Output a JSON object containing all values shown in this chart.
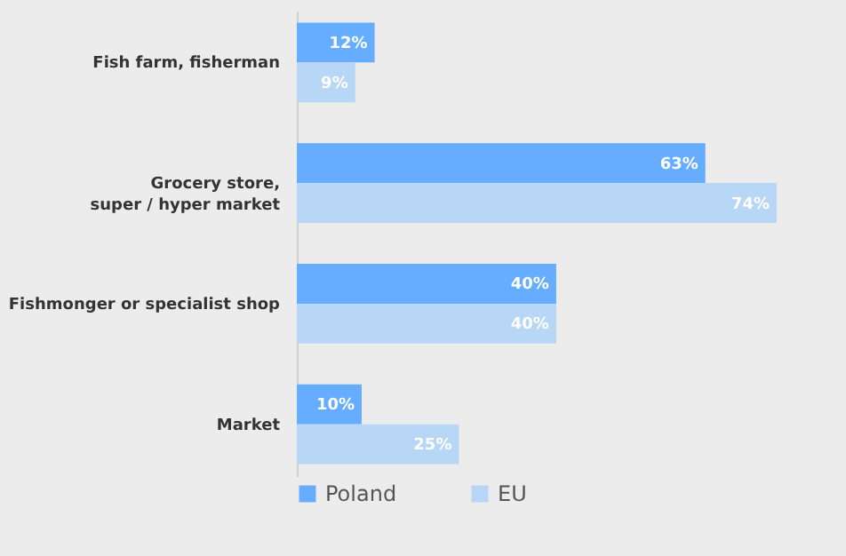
{
  "chart_data": {
    "type": "bar",
    "orientation": "horizontal",
    "categories": [
      "Fish farm, fisherman",
      "Grocery store,\nsuper / hyper market",
      "Fishmonger or specialist shop",
      "Market"
    ],
    "series": [
      {
        "name": "Poland",
        "color": "#66adff",
        "values": [
          12,
          63,
          40,
          10
        ],
        "value_labels": [
          "12%",
          "63%",
          "40%",
          "10%"
        ]
      },
      {
        "name": "EU",
        "color": "#b8d6f5",
        "values": [
          9,
          74,
          40,
          25
        ],
        "value_labels": [
          "9%",
          "74%",
          "40%",
          "25%"
        ]
      }
    ],
    "tick_labels": "y",
    "legend": "bottom",
    "grid": false
  }
}
